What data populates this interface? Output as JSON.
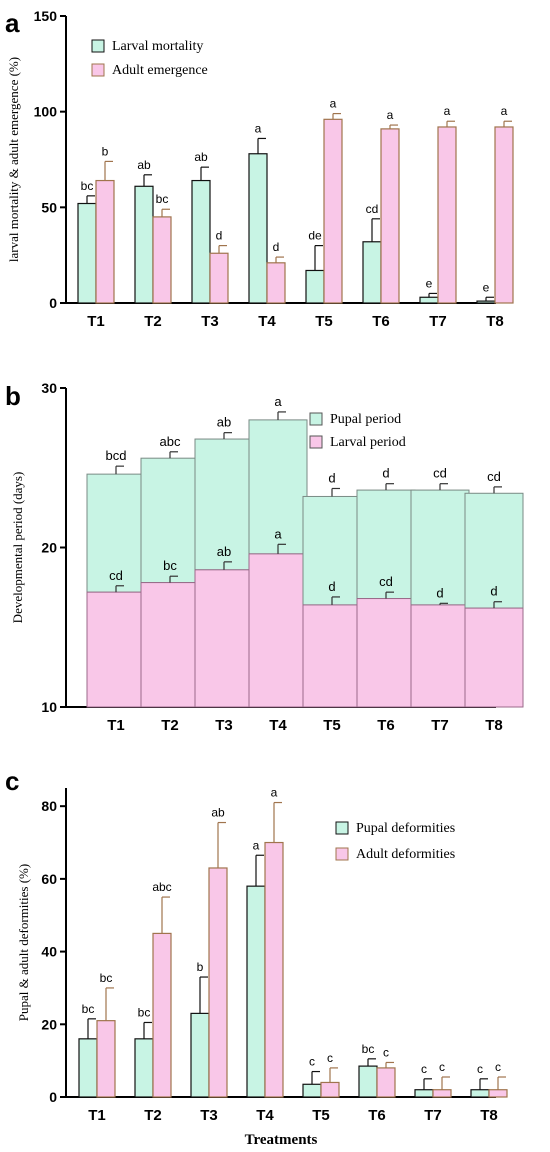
{
  "colors": {
    "green_fill": "#c8f4e4",
    "pink_fill": "#f9c7e8",
    "green_stroke": "#111111",
    "pink_stroke": "#a0744d",
    "axis": "#000000"
  },
  "chart_data": [
    {
      "panel_label": "a",
      "type": "bar",
      "categories": [
        "T1",
        "T2",
        "T3",
        "T4",
        "T5",
        "T6",
        "T7",
        "T8"
      ],
      "ylabel": "larval mortality & adult emergence (%)",
      "xlabel": "",
      "ylim": [
        0,
        150
      ],
      "yticks": [
        "0",
        "50",
        "100",
        "150"
      ],
      "legend_position": "top-left",
      "series": [
        {
          "name": "Larval mortality",
          "color": "green",
          "values": [
            52,
            61,
            64,
            78,
            17,
            32,
            3,
            1
          ],
          "errors": [
            4,
            6,
            7,
            8,
            13,
            12,
            2,
            2
          ],
          "letters": [
            "bc",
            "ab",
            "ab",
            "a",
            "de",
            "cd",
            "e",
            "e"
          ]
        },
        {
          "name": "Adult emergence",
          "color": "pink",
          "values": [
            64,
            45,
            26,
            21,
            96,
            91,
            92,
            92
          ],
          "errors": [
            10,
            4,
            4,
            3,
            3,
            2,
            3,
            3
          ],
          "letters": [
            "b",
            "bc",
            "d",
            "d",
            "a",
            "a",
            "a",
            "a"
          ]
        }
      ]
    },
    {
      "panel_label": "b",
      "type": "bar",
      "stacked": true,
      "categories": [
        "T1",
        "T2",
        "T3",
        "T4",
        "T5",
        "T6",
        "T7",
        "T8"
      ],
      "ylabel": "Developmental period (days)",
      "xlabel": "",
      "ylim": [
        10,
        30
      ],
      "yticks": [
        "10",
        "20",
        "30"
      ],
      "legend_position": "top-right",
      "series": [
        {
          "name": "Pupal period",
          "color": "green",
          "totals": [
            24.6,
            25.6,
            26.8,
            28.0,
            23.2,
            23.6,
            23.6,
            23.4
          ],
          "errors": [
            0.5,
            0.4,
            0.4,
            0.5,
            0.5,
            0.4,
            0.4,
            0.4
          ],
          "letters": [
            "bcd",
            "abc",
            "ab",
            "a",
            "d",
            "d",
            "cd",
            "cd"
          ]
        },
        {
          "name": "Larval period",
          "color": "pink",
          "values": [
            17.2,
            17.8,
            18.6,
            19.6,
            16.4,
            16.8,
            16.4,
            16.2
          ],
          "errors": [
            0.4,
            0.4,
            0.5,
            0.6,
            0.5,
            0.4,
            0.1,
            0.4
          ],
          "letters": [
            "cd",
            "bc",
            "ab",
            "a",
            "d",
            "cd",
            "d",
            "d"
          ]
        }
      ]
    },
    {
      "panel_label": "c",
      "type": "bar",
      "categories": [
        "T1",
        "T2",
        "T3",
        "T4",
        "T5",
        "T6",
        "T7",
        "T8"
      ],
      "ylabel": "Pupal & adult deformities (%)",
      "xlabel": "Treatments",
      "ylim": [
        0,
        85
      ],
      "yticks": [
        "0",
        "20",
        "40",
        "60",
        "80"
      ],
      "legend_position": "top-right",
      "series": [
        {
          "name": "Pupal deformities",
          "color": "green",
          "values": [
            16,
            16,
            23,
            58,
            3.5,
            8.5,
            2,
            2
          ],
          "errors": [
            5.5,
            4.5,
            10,
            8.5,
            3.5,
            2,
            3,
            3
          ],
          "letters": [
            "bc",
            "bc",
            "b",
            "a",
            "c",
            "bc",
            "c",
            "c"
          ]
        },
        {
          "name": "Adult deformities",
          "color": "pink",
          "values": [
            21,
            45,
            63,
            70,
            4,
            8,
            2,
            2
          ],
          "errors": [
            9,
            10,
            12.5,
            11,
            4,
            1.5,
            3.5,
            3.5
          ],
          "letters": [
            "bc",
            "abc",
            "ab",
            "a",
            "c",
            "c",
            "c",
            "c"
          ]
        }
      ]
    }
  ]
}
